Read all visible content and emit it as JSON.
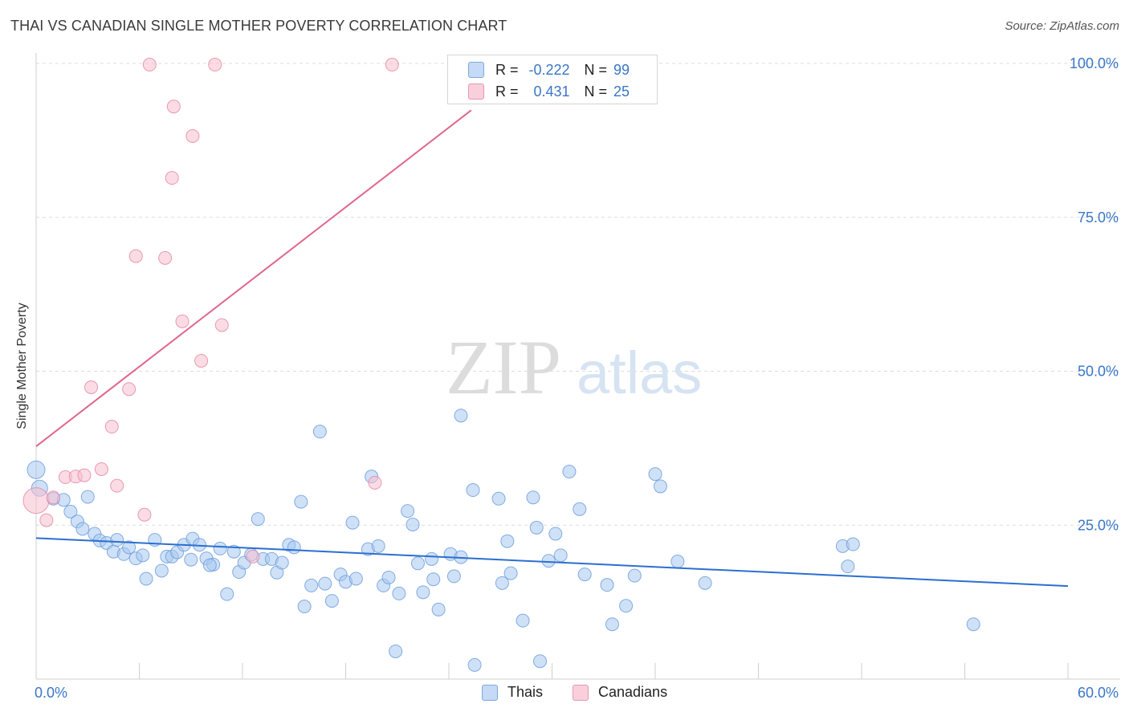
{
  "header": {
    "title": "THAI VS CANADIAN SINGLE MOTHER POVERTY CORRELATION CHART",
    "source": "Source: ZipAtlas.com"
  },
  "watermark": {
    "zip": "ZIP",
    "atlas": "atlas"
  },
  "legend_top": {
    "rows": [
      {
        "r_label": "R =",
        "r_value": "-0.222",
        "n_label": "N =",
        "n_value": "99",
        "color": "#a8c8f0",
        "border": "#6f9fdc"
      },
      {
        "r_label": "R =",
        "r_value": "0.431",
        "n_label": "N =",
        "n_value": "25",
        "color": "#f7bfd0",
        "border": "#e58aa7"
      }
    ]
  },
  "legend_bottom": {
    "thais": "Thais",
    "canadians": "Canadians"
  },
  "chart_data": {
    "type": "scatter",
    "title": "THAI VS CANADIAN SINGLE MOTHER POVERTY CORRELATION CHART",
    "xlabel": "",
    "ylabel": "Single Mother Poverty",
    "xlim": [
      0,
      60
    ],
    "ylim": [
      0,
      100
    ],
    "x_tick_labels": [
      "0.0%",
      "60.0%"
    ],
    "y_ticks": [
      25,
      50,
      75,
      100
    ],
    "y_tick_labels": [
      "25.0%",
      "50.0%",
      "75.0%",
      "100.0%"
    ],
    "grid": true,
    "legend_position": "top-center",
    "series": [
      {
        "name": "Thais",
        "color": "#a8c8f0",
        "stroke": "#6f9fdc",
        "trend_color": "#2b6fd0",
        "trend": {
          "x": [
            0,
            60
          ],
          "y": [
            22.9,
            15.1
          ]
        },
        "points": [
          [
            0,
            34
          ],
          [
            0.2,
            31
          ],
          [
            1,
            29.3
          ],
          [
            1.6,
            29.1
          ],
          [
            2.0,
            27.2
          ],
          [
            2.4,
            25.6
          ],
          [
            2.7,
            24.4
          ],
          [
            3.0,
            29.6
          ],
          [
            3.4,
            23.6
          ],
          [
            3.7,
            22.5
          ],
          [
            4.1,
            22.1
          ],
          [
            4.5,
            20.7
          ],
          [
            4.7,
            22.6
          ],
          [
            5.1,
            20.3
          ],
          [
            5.4,
            21.4
          ],
          [
            5.8,
            19.6
          ],
          [
            6.2,
            20.1
          ],
          [
            6.4,
            16.3
          ],
          [
            6.9,
            22.6
          ],
          [
            7.3,
            17.6
          ],
          [
            7.6,
            19.9
          ],
          [
            7.9,
            19.9
          ],
          [
            8.2,
            20.6
          ],
          [
            8.6,
            21.8
          ],
          [
            9.0,
            19.4
          ],
          [
            9.1,
            22.8
          ],
          [
            9.5,
            21.8
          ],
          [
            9.9,
            19.6
          ],
          [
            10.3,
            18.6
          ],
          [
            10.7,
            21.2
          ],
          [
            11.1,
            13.8
          ],
          [
            11.5,
            20.7
          ],
          [
            11.8,
            17.4
          ],
          [
            12.1,
            18.9
          ],
          [
            12.5,
            20.2
          ],
          [
            12.9,
            26.0
          ],
          [
            13.2,
            19.5
          ],
          [
            13.7,
            19.5
          ],
          [
            14.0,
            17.3
          ],
          [
            14.3,
            18.9
          ],
          [
            14.7,
            21.8
          ],
          [
            15.0,
            21.4
          ],
          [
            15.4,
            28.8
          ],
          [
            15.6,
            11.8
          ],
          [
            16.0,
            15.2
          ],
          [
            16.5,
            40.2
          ],
          [
            16.8,
            15.5
          ],
          [
            17.2,
            12.7
          ],
          [
            17.7,
            17.0
          ],
          [
            18.0,
            15.8
          ],
          [
            18.4,
            25.4
          ],
          [
            18.6,
            16.3
          ],
          [
            19.3,
            21.1
          ],
          [
            19.5,
            32.9
          ],
          [
            19.9,
            21.6
          ],
          [
            20.2,
            15.2
          ],
          [
            20.5,
            16.5
          ],
          [
            20.9,
            4.5
          ],
          [
            21.1,
            13.9
          ],
          [
            21.6,
            27.3
          ],
          [
            21.9,
            25.1
          ],
          [
            22.2,
            18.8
          ],
          [
            22.5,
            14.1
          ],
          [
            23.0,
            19.5
          ],
          [
            23.1,
            16.2
          ],
          [
            23.4,
            11.3
          ],
          [
            24.1,
            20.3
          ],
          [
            24.3,
            16.7
          ],
          [
            24.7,
            19.8
          ],
          [
            25.4,
            30.7
          ],
          [
            25.5,
            2.3
          ],
          [
            26.9,
            29.3
          ],
          [
            27.1,
            15.6
          ],
          [
            27.4,
            22.4
          ],
          [
            27.6,
            17.2
          ],
          [
            28.3,
            9.5
          ],
          [
            28.9,
            29.5
          ],
          [
            29.1,
            24.6
          ],
          [
            29.3,
            2.9
          ],
          [
            29.8,
            19.2
          ],
          [
            30.2,
            23.6
          ],
          [
            30.5,
            20.1
          ],
          [
            31.0,
            33.7
          ],
          [
            31.6,
            27.6
          ],
          [
            31.9,
            17.0
          ],
          [
            33.2,
            15.3
          ],
          [
            33.5,
            8.9
          ],
          [
            34.3,
            11.9
          ],
          [
            34.8,
            16.8
          ],
          [
            36.0,
            33.3
          ],
          [
            36.3,
            31.3
          ],
          [
            37.3,
            19.1
          ],
          [
            38.9,
            15.6
          ],
          [
            46.9,
            21.6
          ],
          [
            47.2,
            18.3
          ],
          [
            47.5,
            21.9
          ],
          [
            54.5,
            8.9
          ],
          [
            24.7,
            42.8
          ],
          [
            10.1,
            18.5
          ]
        ]
      },
      {
        "name": "Canadians",
        "color": "#f7bfd0",
        "stroke": "#e58aa7",
        "trend_color": "#e0668c",
        "trend": {
          "x": [
            0,
            25.3
          ],
          "y": [
            37.8,
            92.4
          ]
        },
        "points": [
          [
            0,
            29
          ],
          [
            0.6,
            25.8
          ],
          [
            1.0,
            29.5
          ],
          [
            1.7,
            32.8
          ],
          [
            2.3,
            32.9
          ],
          [
            2.8,
            33.1
          ],
          [
            3.2,
            47.4
          ],
          [
            3.8,
            34.1
          ],
          [
            4.4,
            41.0
          ],
          [
            4.7,
            31.4
          ],
          [
            5.4,
            47.1
          ],
          [
            5.8,
            68.7
          ],
          [
            6.3,
            26.7
          ],
          [
            6.6,
            99.8
          ],
          [
            7.5,
            68.4
          ],
          [
            7.9,
            81.4
          ],
          [
            8.0,
            93.0
          ],
          [
            8.5,
            58.1
          ],
          [
            9.1,
            88.2
          ],
          [
            9.6,
            51.7
          ],
          [
            10.4,
            99.8
          ],
          [
            10.8,
            57.5
          ],
          [
            12.6,
            19.9
          ],
          [
            19.7,
            31.9
          ],
          [
            20.7,
            99.8
          ]
        ]
      }
    ]
  }
}
